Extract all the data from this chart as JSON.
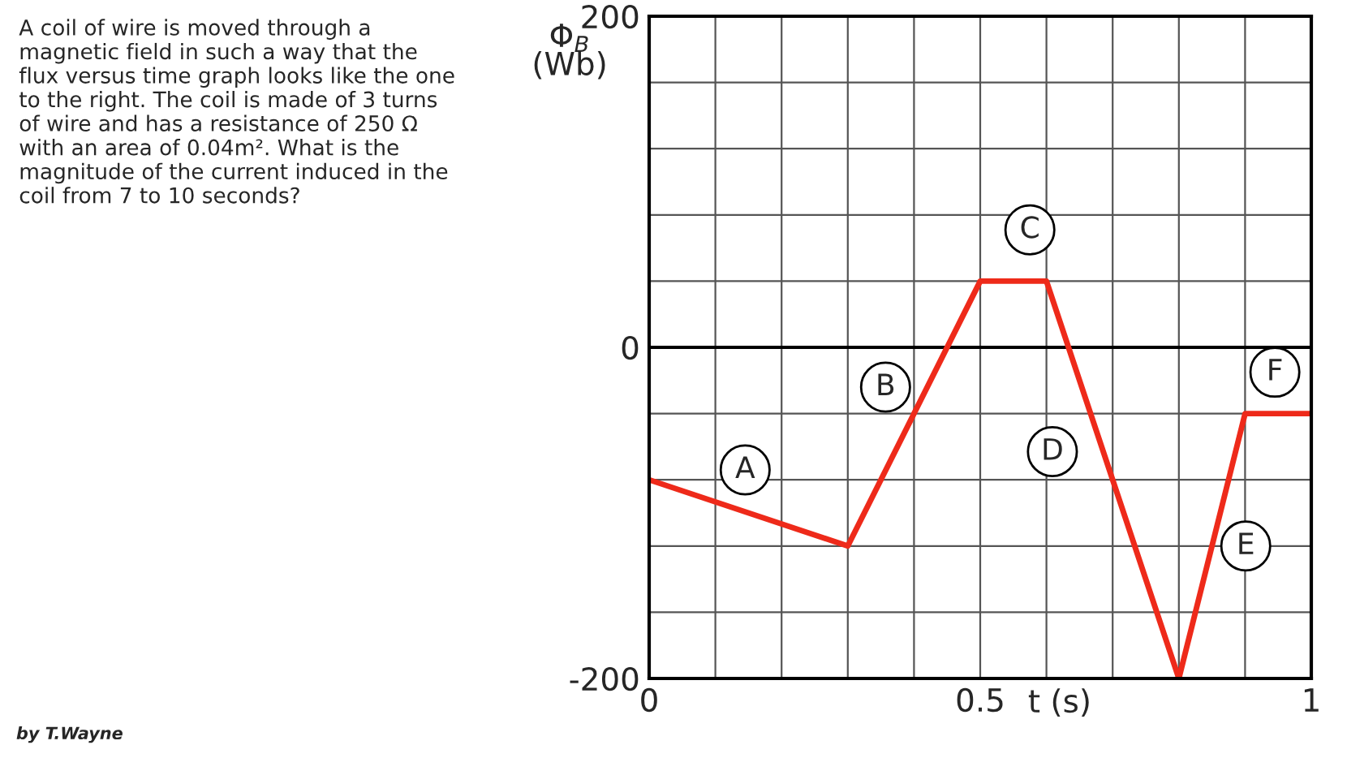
{
  "chart_data": {
    "type": "line",
    "x": [
      0,
      0.3,
      0.5,
      0.6,
      0.8,
      0.9,
      1
    ],
    "series": [
      {
        "color": "#ee2a1a",
        "values": [
          -80,
          -120,
          40,
          40,
          -200,
          -40,
          -40
        ]
      }
    ],
    "xlim": [
      0,
      1
    ],
    "ylim": [
      -200,
      200
    ],
    "xticks": [
      0,
      {
        "value": 0.1,
        "label": null
      },
      {
        "value": 0.2,
        "label": null
      },
      {
        "value": 0.3,
        "label": null
      },
      {
        "value": 0.4,
        "label": null
      },
      0.5,
      {
        "value": 0.6,
        "label": null
      },
      {
        "value": 0.7,
        "label": null
      },
      {
        "value": 0.8,
        "label": null
      },
      {
        "value": 0.9,
        "label": null
      },
      1
    ],
    "yticks": [
      -200,
      {
        "value": -160,
        "label": null
      },
      {
        "value": -120,
        "label": null
      },
      {
        "value": -80,
        "label": null
      },
      {
        "value": -40,
        "label": null
      },
      0,
      {
        "value": 40,
        "label": null
      },
      {
        "value": 80,
        "label": null
      },
      {
        "value": 120,
        "label": null
      },
      {
        "value": 160,
        "label": null
      },
      200
    ],
    "xlabel": "t (s)",
    "ylabel": "Φ$_{B}$\n(Wb)",
    "grid": true,
    "marker": "none",
    "line_style": "solid",
    "ref_lines": [
      {
        "axis": "y",
        "value": 0,
        "color": "#000000"
      }
    ],
    "annotations": [
      {
        "text": "A",
        "x": 0.145,
        "y": -74
      },
      {
        "text": "B",
        "x": 0.357,
        "y": -24
      },
      {
        "text": "C",
        "x": 0.575,
        "y": 71
      },
      {
        "text": "D",
        "x": 0.609,
        "y": -63
      },
      {
        "text": "E",
        "x": 0.901,
        "y": -120
      },
      {
        "text": "F",
        "x": 0.945,
        "y": -15
      },
      "A coil of wire is moved through a\nmagnetic field in such a way that the\nflux versus time graph looks like the one\nto the right. The coil is made of 3 turns\nof wire and has a resistance of 250 Ω\nwith an area of 0.04m². What is the\nmagnitude of the current induced in the\ncoil from 7 to 10 seconds?",
      "by T.Wayne"
    ]
  }
}
